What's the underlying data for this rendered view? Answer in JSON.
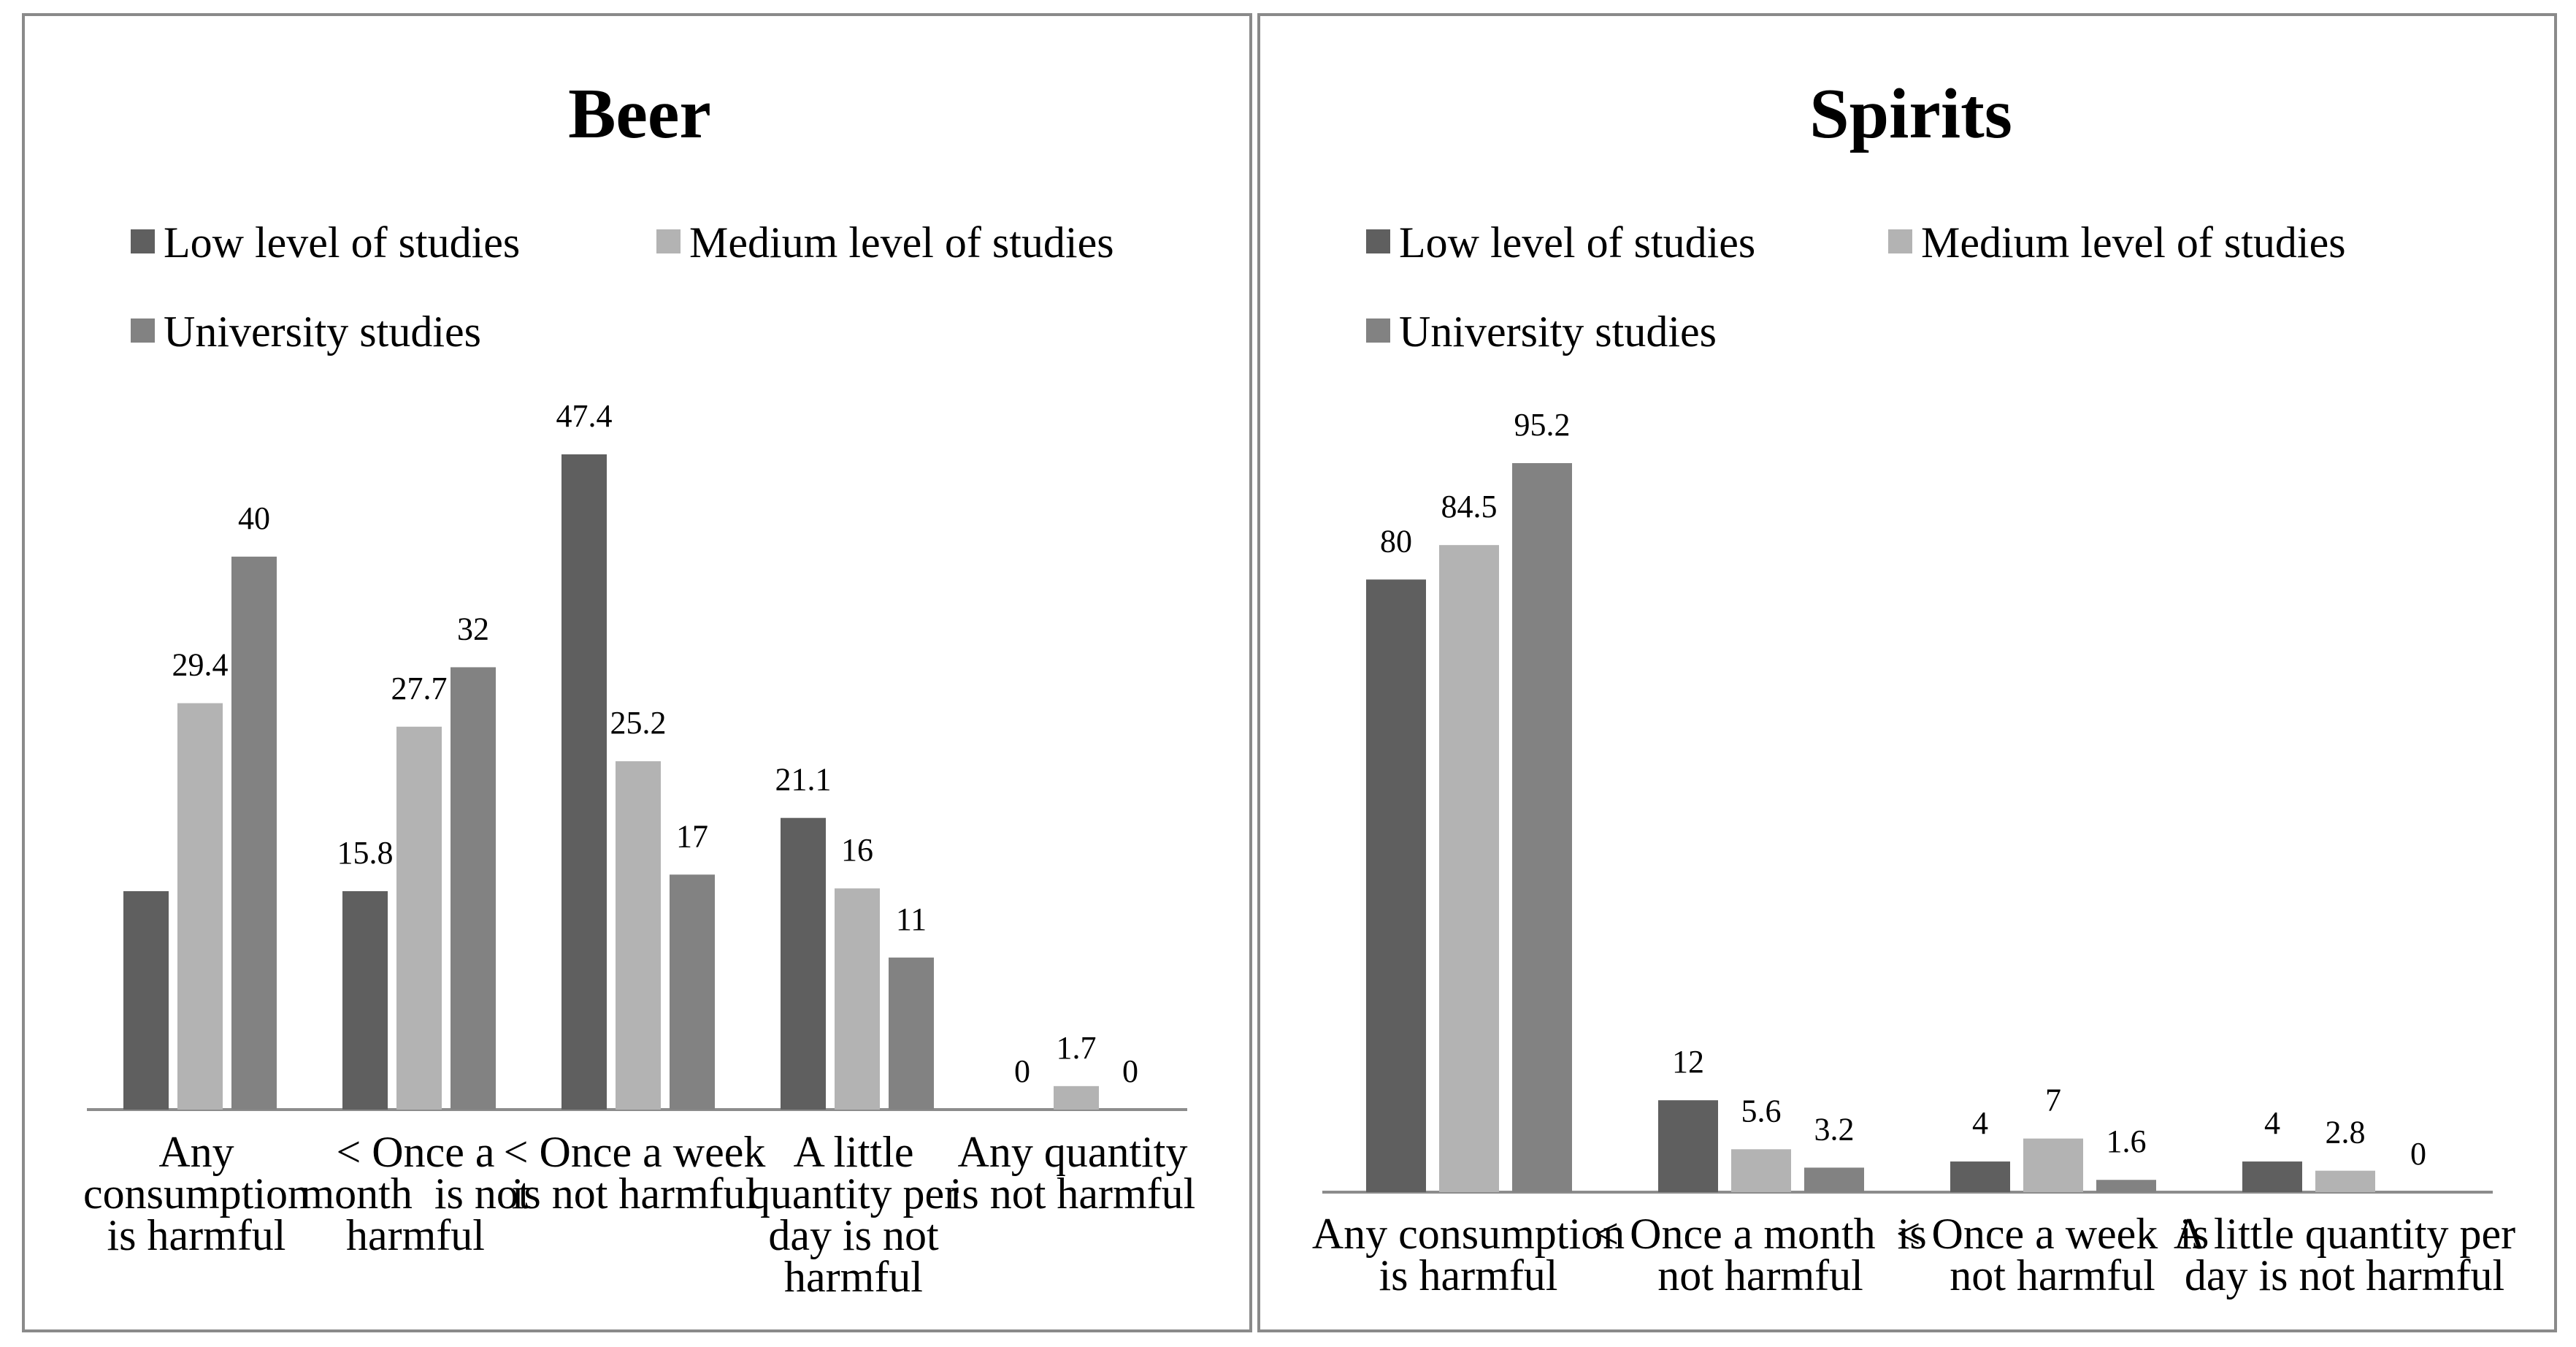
{
  "chart_data": [
    {
      "type": "bar",
      "title": "Beer",
      "xlabel": "",
      "ylabel": "",
      "ylim": [
        0,
        47.4
      ],
      "grid": false,
      "legend_position": "top",
      "categories": [
        "Any consumption is harmful",
        "< Once a month  is not harmful",
        "< Once a week is not harmful",
        "A little quantity per day is not harmful",
        "Any quantity is not harmful"
      ],
      "category_lines": [
        [
          "Any",
          "consumption",
          "is harmful"
        ],
        [
          "< Once a",
          "month  is not",
          "harmful"
        ],
        [
          "< Once a week",
          "is not harmful"
        ],
        [
          "A little",
          "quantity per",
          "day is not",
          "harmful"
        ],
        [
          "Any quantity",
          "is not harmful"
        ]
      ],
      "series": [
        {
          "name": "Low level of studies",
          "color": "#5f5f5f",
          "values": [
            15.8,
            15.8,
            47.4,
            21.1,
            0
          ],
          "labels": [
            "",
            "15.8",
            "47.4",
            "21.1",
            "0"
          ]
        },
        {
          "name": "Medium level of studies",
          "color": "#b3b3b3",
          "values": [
            29.4,
            27.7,
            25.2,
            16,
            1.7
          ],
          "labels": [
            "29.4",
            "27.7",
            "25.2",
            "16",
            "1.7"
          ]
        },
        {
          "name": "University studies",
          "color": "#828282",
          "values": [
            40,
            32,
            17,
            11,
            0
          ],
          "labels": [
            "40",
            "32",
            "17",
            "11",
            "0"
          ]
        }
      ]
    },
    {
      "type": "bar",
      "title": "Spirits",
      "xlabel": "",
      "ylabel": "",
      "ylim": [
        0,
        95.2
      ],
      "grid": false,
      "legend_position": "top",
      "categories": [
        "Any consumption is harmful",
        "< Once a month  is not harmful",
        "< Once a week  is not harmful",
        "A little quantity per day is not harmful"
      ],
      "category_lines": [
        [
          "Any consumption",
          "is harmful"
        ],
        [
          "< Once a month  is",
          "not harmful"
        ],
        [
          "< Once a week  is",
          "not harmful"
        ],
        [
          "A little quantity per",
          "day is not harmful"
        ]
      ],
      "series": [
        {
          "name": "Low level of studies",
          "color": "#5f5f5f",
          "values": [
            80,
            12,
            4,
            4
          ],
          "labels": [
            "80",
            "12",
            "4",
            "4"
          ]
        },
        {
          "name": "Medium level of studies",
          "color": "#b3b3b3",
          "values": [
            84.5,
            5.6,
            7,
            2.8
          ],
          "labels": [
            "84.5",
            "5.6",
            "7",
            "2.8"
          ]
        },
        {
          "name": "University studies",
          "color": "#828282",
          "values": [
            95.2,
            3.2,
            1.6,
            0
          ],
          "labels": [
            "95.2",
            "3.2",
            "1.6",
            "0"
          ]
        }
      ]
    }
  ]
}
